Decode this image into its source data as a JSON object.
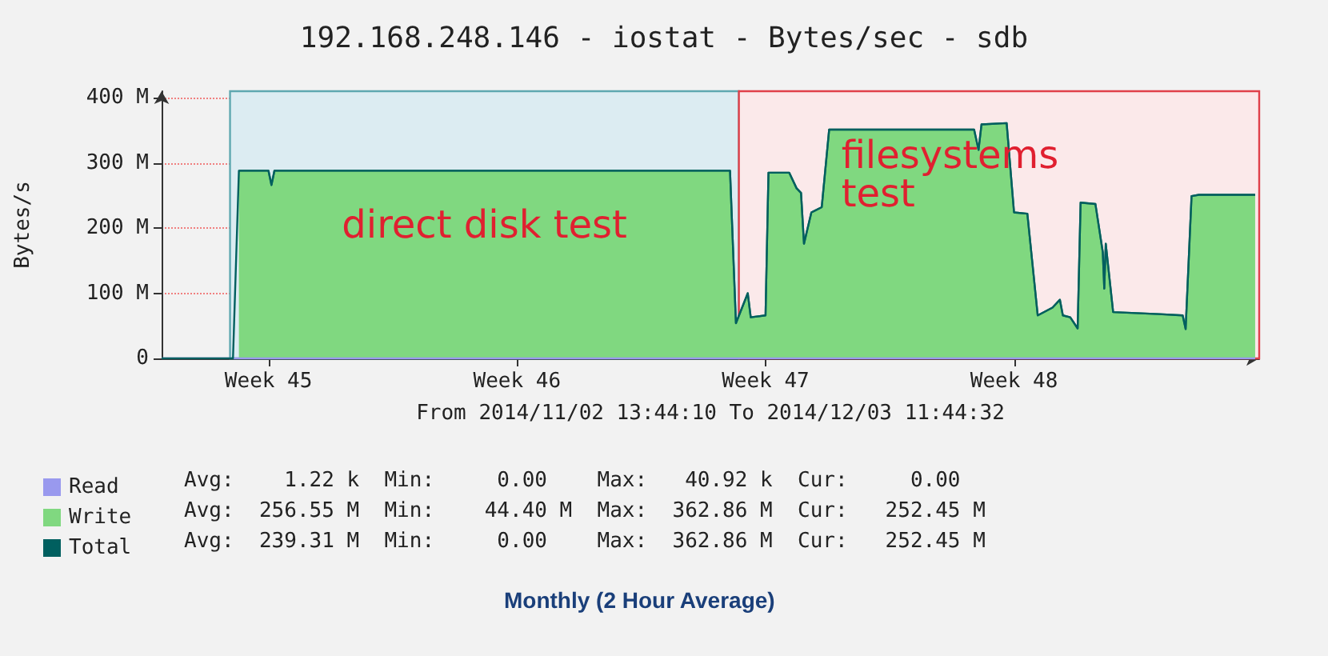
{
  "chart_data": {
    "type": "area",
    "title": "192.168.248.146 - iostat - Bytes/sec - sdb",
    "xlabel": "From 2014/11/02 13:44:10 To 2014/12/03 11:44:32",
    "ylabel": "Bytes/s",
    "xlim": [
      "2014-11-02T13:44",
      "2014-12-03T11:44"
    ],
    "xticks": [
      {
        "value": "2014-11-05T14:00",
        "label": "Week 45"
      },
      {
        "value": "2014-11-12T14:00",
        "label": "Week 46"
      },
      {
        "value": "2014-11-19T14:00",
        "label": "Week 47"
      },
      {
        "value": "2014-11-26T14:00",
        "label": "Week 48"
      }
    ],
    "ylim": [
      0,
      410
    ],
    "yticks": [
      0,
      {
        "value": 100,
        "label": "100 M"
      },
      {
        "value": 200,
        "label": "200 M"
      },
      {
        "value": 300,
        "label": "300 M"
      },
      {
        "value": 400,
        "label": "400 M"
      }
    ],
    "grid": true,
    "legend": "bottom left",
    "series": [
      {
        "name": "Read",
        "type": "line",
        "color": "#9999ee",
        "x": [
          "2014-11-02T13:44",
          "2014-12-03T09:00"
        ],
        "values": [
          0,
          0
        ]
      },
      {
        "name": "Write",
        "type": "area",
        "color": "#80d880",
        "x": [
          "2014-11-04T18:00",
          "2014-11-05T14:00",
          "2014-11-05T16:00",
          "2014-11-05T18:00",
          "2014-11-18T14:00",
          "2014-11-18T18:00",
          "2014-11-19T02:00",
          "2014-11-19T04:00",
          "2014-11-19T14:00",
          "2014-11-19T16:00",
          "2014-11-20T06:00",
          "2014-11-20T11:00",
          "2014-11-20T14:00",
          "2014-11-20T16:00",
          "2014-11-20T21:00",
          "2014-11-21T04:00",
          "2014-11-21T09:00",
          "2014-11-25T11:00",
          "2014-11-25T14:00",
          "2014-11-25T16:00",
          "2014-11-26T09:00",
          "2014-11-26T14:00",
          "2014-11-26T23:00",
          "2014-11-27T06:00",
          "2014-11-27T16:00",
          "2014-11-27T21:00",
          "2014-11-27T23:00",
          "2014-11-28T04:00",
          "2014-11-28T09:00",
          "2014-11-28T11:00",
          "2014-11-28T21:00",
          "2014-11-29T02:00",
          "2014-11-29T03:00",
          "2014-11-29T04:00",
          "2014-11-29T09:00",
          "2014-11-30T16:00",
          "2014-12-01T08:00",
          "2014-12-01T10:00",
          "2014-12-01T14:00",
          "2014-12-01T19:00",
          "2014-12-03T09:00"
        ],
        "values": [
          288,
          288,
          266,
          288,
          288,
          54,
          100,
          63,
          66,
          285,
          285,
          261,
          254,
          176,
          224,
          232,
          351,
          351,
          320,
          359,
          361,
          224,
          222,
          66,
          78,
          90,
          66,
          63,
          46,
          239,
          237,
          163,
          107,
          176,
          71,
          68,
          66,
          45,
          249,
          251,
          251
        ]
      },
      {
        "name": "Total",
        "type": "line",
        "color": "#005f5f",
        "x": [
          "2014-11-02T13:44",
          "2014-11-04T14:00",
          "2014-11-04T18:00",
          "2014-11-05T14:00",
          "2014-11-05T16:00",
          "2014-11-05T18:00",
          "2014-11-18T14:00",
          "2014-11-18T18:00",
          "2014-11-19T02:00",
          "2014-11-19T04:00",
          "2014-11-19T14:00",
          "2014-11-19T16:00",
          "2014-11-20T06:00",
          "2014-11-20T11:00",
          "2014-11-20T14:00",
          "2014-11-20T16:00",
          "2014-11-20T21:00",
          "2014-11-21T04:00",
          "2014-11-21T09:00",
          "2014-11-25T11:00",
          "2014-11-25T14:00",
          "2014-11-25T16:00",
          "2014-11-26T09:00",
          "2014-11-26T14:00",
          "2014-11-26T23:00",
          "2014-11-27T06:00",
          "2014-11-27T16:00",
          "2014-11-27T21:00",
          "2014-11-27T23:00",
          "2014-11-28T04:00",
          "2014-11-28T09:00",
          "2014-11-28T11:00",
          "2014-11-28T21:00",
          "2014-11-29T02:00",
          "2014-11-29T03:00",
          "2014-11-29T04:00",
          "2014-11-29T09:00",
          "2014-11-30T16:00",
          "2014-12-01T08:00",
          "2014-12-01T10:00",
          "2014-12-01T14:00",
          "2014-12-01T19:00",
          "2014-12-03T09:00"
        ],
        "values": [
          0,
          0,
          288,
          288,
          266,
          288,
          288,
          54,
          100,
          63,
          66,
          285,
          285,
          261,
          254,
          176,
          224,
          232,
          351,
          351,
          320,
          359,
          361,
          224,
          222,
          66,
          78,
          90,
          66,
          63,
          46,
          239,
          237,
          163,
          107,
          176,
          71,
          68,
          66,
          45,
          249,
          251,
          251
        ]
      }
    ],
    "bands": [
      {
        "axis": "x",
        "from": "2014-11-04T12:00",
        "to": "2014-11-18T20:00",
        "label": "direct disk test",
        "color": "#dcecf2"
      },
      {
        "axis": "x",
        "from": "2014-11-18T20:00",
        "to": "2014-12-03T11:44",
        "label": "filesystems test",
        "color": "#fbe9ea"
      }
    ],
    "annotations": [
      "Avg:    1.22 k  Min:     0.00    Max:   40.92 k  Cur:     0.00",
      "Avg:  256.55 M  Min:    44.40 M  Max:  362.86 M  Cur:   252.45 M",
      "Avg:  239.31 M  Min:     0.00    Max:  362.86 M  Cur:   252.45 M",
      "Monthly (2 Hour Average)"
    ]
  }
}
